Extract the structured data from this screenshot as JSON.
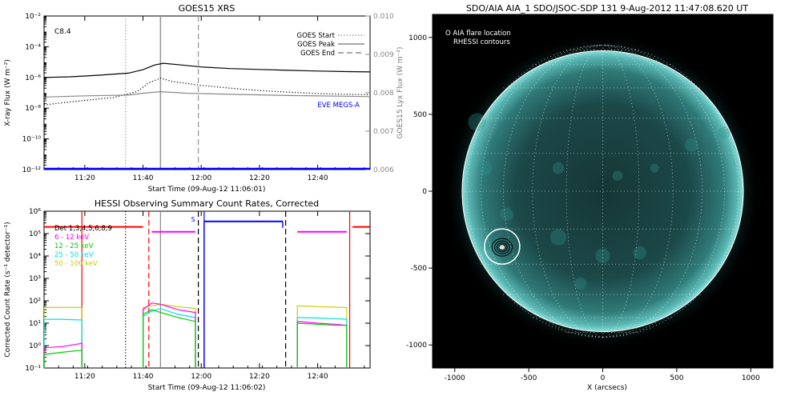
{
  "chart_data": [
    {
      "type": "line",
      "title": "GOES15 XRS",
      "flare_class": "C8.4",
      "xlabel": "Start Time (09-Aug-12 11:06:01)",
      "ylabel": "X-ray Flux (W m⁻²)",
      "y2label": "GOES15 Lyx Flux (W m⁻²)",
      "xlim": [
        "11:06",
        "12:58"
      ],
      "ylim": [
        1e-12,
        0.01
      ],
      "yscale": "log",
      "y2lim": [
        0.006,
        0.01
      ],
      "x_ticks": [
        "11:20",
        "11:40",
        "12:00",
        "12:20",
        "12:40"
      ],
      "y_ticks": [
        {
          "value": 1e-12,
          "label": "10⁻¹²"
        },
        {
          "value": 1e-10,
          "label": "10⁻¹⁰"
        },
        {
          "value": 1e-08,
          "label": "10⁻⁸"
        },
        {
          "value": 1e-06,
          "label": "10⁻⁶"
        },
        {
          "value": 0.0001,
          "label": "10⁻⁴"
        },
        {
          "value": 0.01,
          "label": "10⁻²"
        }
      ],
      "y2_ticks": [
        "0.006",
        "0.007",
        "0.008",
        "0.009",
        "0.010"
      ],
      "legend_position": "top-right",
      "legend": [
        {
          "label": "GOES Start",
          "style": "dotted"
        },
        {
          "label": "GOES Peak",
          "style": "solid"
        },
        {
          "label": "GOES End",
          "style": "dashed"
        }
      ],
      "markers": [
        {
          "label": "GOES Start",
          "time": "11:34",
          "style": "dotted"
        },
        {
          "label": "GOES Peak",
          "time": "11:46",
          "style": "solid"
        },
        {
          "label": "GOES End",
          "time": "11:59",
          "style": "dashed"
        }
      ],
      "eve_label": "EVE MEGS-A",
      "series": [
        {
          "color": "#000000",
          "style": "solid",
          "x": [
            "11:06",
            "11:15",
            "11:25",
            "11:35",
            "11:40",
            "11:44",
            "11:47",
            "11:52",
            "12:00",
            "12:10",
            "12:20",
            "12:30",
            "12:40",
            "12:50",
            "12:58"
          ],
          "y": [
            1e-06,
            1.1e-06,
            1.4e-06,
            1.9e-06,
            3.2e-06,
            6.5e-06,
            8.4e-06,
            6.8e-06,
            4.8e-06,
            3.8e-06,
            3.3e-06,
            2.9e-06,
            2.6e-06,
            2.4e-06,
            2.3e-06
          ]
        },
        {
          "color": "#000000",
          "style": "dotted",
          "x": [
            "11:06",
            "11:10",
            "11:20",
            "11:30",
            "11:38",
            "11:42",
            "11:46",
            "11:50",
            "12:00",
            "12:10",
            "12:20",
            "12:30",
            "12:40",
            "12:50",
            "12:58"
          ],
          "y": [
            1.6e-08,
            2e-08,
            3.2e-08,
            5e-08,
            1.2e-07,
            4.5e-07,
            9e-07,
            5.5e-07,
            3e-07,
            2e-07,
            1.4e-07,
            1.1e-07,
            9e-08,
            8e-08,
            7.5e-08
          ]
        },
        {
          "color": "#888888",
          "style": "solid",
          "x": [
            "11:06",
            "11:20",
            "11:35",
            "11:40",
            "11:46",
            "11:55",
            "12:10",
            "12:30",
            "12:50",
            "12:58"
          ],
          "y": [
            0.00789,
            0.00792,
            0.00794,
            0.00799,
            0.00803,
            0.00799,
            0.00796,
            0.00793,
            0.00791,
            0.0079
          ]
        },
        {
          "color": "#0000ff",
          "style": "solid",
          "x": [
            "11:06",
            "12:58"
          ],
          "y": [
            1.1e-12,
            1.1e-12
          ]
        }
      ]
    },
    {
      "type": "line",
      "title": "HESSI Observing Summary Count Rates, Corrected",
      "xlabel": "Start Time (09-Aug-12 11:06:02)",
      "ylabel": "Corrected Count Rate (s⁻¹ detector⁻¹)",
      "xlim": [
        "11:06",
        "12:58"
      ],
      "ylim": [
        0.1,
        1000000.0
      ],
      "yscale": "log",
      "x_ticks": [
        "11:20",
        "11:40",
        "12:00",
        "12:20",
        "12:40"
      ],
      "y_ticks": [
        {
          "value": 0.1,
          "label": "10⁻¹"
        },
        {
          "value": 1,
          "label": "10⁰"
        },
        {
          "value": 10,
          "label": "10¹"
        },
        {
          "value": 100,
          "label": "10²"
        },
        {
          "value": 1000,
          "label": "10³"
        },
        {
          "value": 10000,
          "label": "10⁴"
        },
        {
          "value": 100000,
          "label": "10⁵"
        },
        {
          "value": 1000000,
          "label": "10⁶"
        }
      ],
      "legend_position": "top-left",
      "legend": [
        {
          "label": "Det 1,3,4,5,6,8,9",
          "color": "#000000"
        },
        {
          "label": "6 - 12 keV",
          "color": "#ff00ff"
        },
        {
          "label": "12 - 25 keV",
          "color": "#00cc00"
        },
        {
          "label": "25 - 50 keV",
          "color": "#00e0e0"
        },
        {
          "label": "50 - 100 keV",
          "color": "#cccc00"
        }
      ],
      "saa_label": "S",
      "vlines": [
        {
          "time": "11:19",
          "color": "#ff0000",
          "style": "solid"
        },
        {
          "time": "11:34",
          "color": "#000000",
          "style": "dotted"
        },
        {
          "time": "11:42",
          "color": "#ff0000",
          "style": "dashed"
        },
        {
          "time": "11:46",
          "color": "#888888",
          "style": "solid"
        },
        {
          "time": "11:59",
          "color": "#000000",
          "style": "dashed"
        },
        {
          "time": "12:01",
          "color": "#0000ff",
          "style": "solid"
        },
        {
          "time": "12:29",
          "color": "#000000",
          "style": "dashed"
        },
        {
          "time": "12:51",
          "color": "#ff0000",
          "style": "solid"
        }
      ],
      "state_segments": [
        {
          "color": "#ff0000",
          "x": [
            "11:06",
            "11:40"
          ],
          "y": 200000
        },
        {
          "color": "#ff00ff",
          "x": [
            "11:43",
            "11:58"
          ],
          "y": 120000
        },
        {
          "color": "#0000ff",
          "x": [
            "12:01",
            "12:28"
          ],
          "y": 350000
        },
        {
          "color": "#ff00ff",
          "x": [
            "12:33",
            "12:50"
          ],
          "y": 120000
        },
        {
          "color": "#ff0000",
          "x": [
            "12:52",
            "12:58"
          ],
          "y": 200000
        }
      ],
      "series": [
        {
          "name": "50 - 100 keV",
          "color": "#cccc00",
          "segments": [
            {
              "x": [
                "11:06",
                "11:12",
                "11:18",
                "11:19"
              ],
              "y": [
                50,
                50,
                50,
                50
              ]
            },
            {
              "x": [
                "11:40",
                "11:43",
                "11:46",
                "11:52",
                "11:58"
              ],
              "y": [
                50,
                60,
                70,
                55,
                45
              ]
            },
            {
              "x": [
                "12:33",
                "12:40",
                "12:46",
                "12:50"
              ],
              "y": [
                60,
                55,
                52,
                50
              ]
            }
          ]
        },
        {
          "name": "25 - 50 keV",
          "color": "#00e0e0",
          "segments": [
            {
              "x": [
                "11:06",
                "11:12",
                "11:18",
                "11:19"
              ],
              "y": [
                15,
                15,
                14,
                14
              ]
            },
            {
              "x": [
                "11:40",
                "11:43",
                "11:46",
                "11:52",
                "11:58"
              ],
              "y": [
                20,
                35,
                45,
                25,
                18
              ]
            },
            {
              "x": [
                "12:33",
                "12:40",
                "12:46",
                "12:50"
              ],
              "y": [
                18,
                17,
                16,
                15
              ]
            }
          ]
        },
        {
          "name": "6 - 12 keV",
          "color": "#ff00ff",
          "segments": [
            {
              "x": [
                "11:06",
                "11:12",
                "11:18",
                "11:19"
              ],
              "y": [
                0.8,
                0.9,
                1.2,
                1.3
              ]
            },
            {
              "x": [
                "11:40",
                "11:43",
                "11:46",
                "11:52",
                "11:58"
              ],
              "y": [
                40,
                80,
                70,
                40,
                30
              ]
            },
            {
              "x": [
                "12:33",
                "12:40",
                "12:46",
                "12:50"
              ],
              "y": [
                12,
                10,
                9,
                8
              ]
            }
          ]
        },
        {
          "name": "12 - 25 keV",
          "color": "#00cc00",
          "segments": [
            {
              "x": [
                "11:06",
                "11:12",
                "11:18",
                "11:19"
              ],
              "y": [
                0.4,
                0.5,
                0.6,
                0.6
              ]
            },
            {
              "x": [
                "11:40",
                "11:43",
                "11:46",
                "11:52",
                "11:58"
              ],
              "y": [
                25,
                40,
                30,
                18,
                12
              ]
            },
            {
              "x": [
                "12:33",
                "12:40",
                "12:46",
                "12:50"
              ],
              "y": [
                10,
                9,
                8,
                8
              ]
            }
          ]
        }
      ]
    },
    {
      "type": "image",
      "title": "SDO/AIA AIA_1 SDO/JSOC-SDP 131  9-Aug-2012 11:47:08.620 UT",
      "xlabel": "X (arcsecs)",
      "xlim": [
        -1150,
        1150
      ],
      "ylim": [
        -1150,
        1150
      ],
      "x_ticks": [
        -1000,
        -500,
        0,
        500,
        1000
      ],
      "y_ticks": [
        -1000,
        -500,
        0,
        500,
        1000
      ],
      "solar_radius_arcsec": 950,
      "legend": [
        "O AIA flare location",
        "RHESSI contours"
      ],
      "flare_location": {
        "x": -680,
        "y": -360
      }
    }
  ]
}
